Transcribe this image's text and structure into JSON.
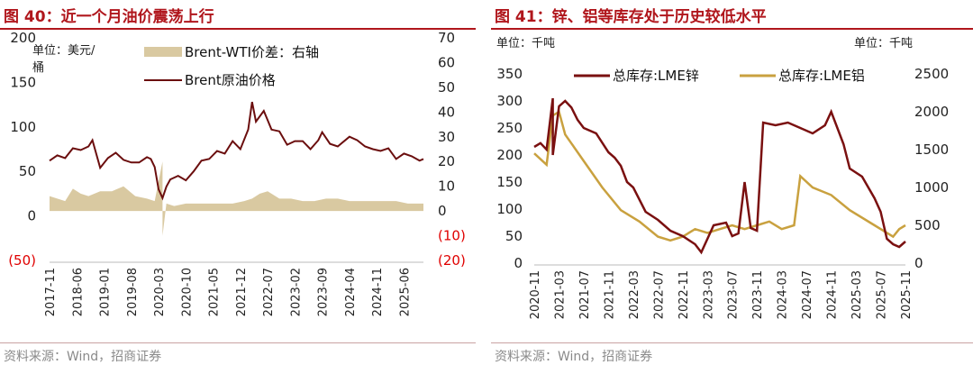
{
  "source_note": "资料来源：Wind，招商证券",
  "colors": {
    "title": "#b0161c",
    "brent": "#6b0e0e",
    "spread": "#d9c9a1",
    "zinc": "#7a1010",
    "aluminum": "#c9a13f",
    "negative_tick": "#e00000"
  },
  "chart_data": [
    {
      "type": "line",
      "title": "图 40：近一个月油价震荡上行",
      "unit_left_line1": "单位：美元/",
      "unit_left_line2": "桶",
      "y_left_ticks": [
        "200",
        "150",
        "100",
        "50",
        "0",
        "(50)"
      ],
      "ylim_left": [
        -50,
        200
      ],
      "y_right_ticks": [
        "70",
        "60",
        "50",
        "40",
        "30",
        "20",
        "10",
        "0",
        "(10)",
        "(20)"
      ],
      "ylim_right": [
        -20,
        70
      ],
      "x_ticks": [
        "2017-11",
        "2018-06",
        "2019-01",
        "2019-08",
        "2020-03",
        "2020-10",
        "2021-05",
        "2021-12",
        "2022-07",
        "2023-02",
        "2023-09",
        "2024-04",
        "2024-11",
        "2025-06"
      ],
      "x_range": [
        "2017-11",
        "2025-11"
      ],
      "grid": false,
      "legend_position": "top",
      "series": [
        {
          "name": "Brent原油价格",
          "axis": "left",
          "style": "line",
          "x": [
            "2017-11",
            "2018-01",
            "2018-03",
            "2018-05",
            "2018-07",
            "2018-09",
            "2018-10",
            "2018-12",
            "2019-02",
            "2019-04",
            "2019-06",
            "2019-08",
            "2019-10",
            "2019-12",
            "2020-01",
            "2020-02",
            "2020-03",
            "2020-04",
            "2020-05",
            "2020-06",
            "2020-08",
            "2020-10",
            "2020-12",
            "2021-02",
            "2021-04",
            "2021-06",
            "2021-08",
            "2021-10",
            "2021-12",
            "2022-02",
            "2022-03",
            "2022-04",
            "2022-06",
            "2022-08",
            "2022-10",
            "2022-12",
            "2023-02",
            "2023-04",
            "2023-06",
            "2023-08",
            "2023-09",
            "2023-11",
            "2024-01",
            "2024-04",
            "2024-06",
            "2024-08",
            "2024-10",
            "2024-12",
            "2025-02",
            "2025-04",
            "2025-06",
            "2025-08",
            "2025-10",
            "2025-11"
          ],
          "values": [
            62,
            68,
            65,
            76,
            74,
            78,
            85,
            54,
            65,
            71,
            63,
            60,
            60,
            66,
            64,
            55,
            30,
            20,
            33,
            41,
            45,
            40,
            50,
            62,
            64,
            73,
            70,
            84,
            75,
            97,
            128,
            106,
            118,
            97,
            95,
            80,
            84,
            84,
            75,
            85,
            94,
            81,
            78,
            89,
            85,
            78,
            75,
            73,
            76,
            64,
            70,
            67,
            62,
            64
          ]
        },
        {
          "name": "Brent-WTI价差：右轴",
          "axis": "right",
          "style": "area",
          "x": [
            "2017-11",
            "2018-01",
            "2018-03",
            "2018-05",
            "2018-07",
            "2018-09",
            "2018-12",
            "2019-03",
            "2019-06",
            "2019-09",
            "2019-12",
            "2020-02",
            "2020-04",
            "2020-04",
            "2020-05",
            "2020-07",
            "2020-10",
            "2021-01",
            "2021-04",
            "2021-07",
            "2021-10",
            "2022-01",
            "2022-03",
            "2022-05",
            "2022-07",
            "2022-10",
            "2023-01",
            "2023-04",
            "2023-07",
            "2023-10",
            "2024-01",
            "2024-04",
            "2024-07",
            "2024-10",
            "2025-01",
            "2025-04",
            "2025-07",
            "2025-11"
          ],
          "values": [
            6,
            5,
            4,
            9,
            7,
            6,
            8,
            8,
            10,
            6,
            5,
            4,
            20,
            -10,
            3,
            2,
            3,
            3,
            3,
            3,
            3,
            4,
            5,
            7,
            8,
            5,
            5,
            4,
            4,
            5,
            5,
            4,
            4,
            4,
            4,
            4,
            3,
            3
          ]
        }
      ]
    },
    {
      "type": "line",
      "title": "图 41：锌、铝等库存处于历史较低水平",
      "unit_left": "单位：千吨",
      "unit_right": "单位：千吨",
      "y_left_ticks": [
        "350",
        "300",
        "250",
        "200",
        "150",
        "100",
        "50",
        "0"
      ],
      "ylim_left": [
        0,
        350
      ],
      "y_right_ticks": [
        "2500",
        "2000",
        "1500",
        "1000",
        "500",
        "0"
      ],
      "ylim_right": [
        0,
        2500
      ],
      "x_ticks": [
        "2020-11",
        "2021-03",
        "2021-07",
        "2021-11",
        "2022-03",
        "2022-07",
        "2022-11",
        "2023-03",
        "2023-07",
        "2023-11",
        "2024-03",
        "2024-07",
        "2024-11",
        "2025-03",
        "2025-07",
        "2025-11"
      ],
      "x_range": [
        "2020-11",
        "2025-11"
      ],
      "grid": false,
      "legend_position": "top",
      "series": [
        {
          "name": "总库存:LME锌",
          "axis": "left",
          "x": [
            "2020-11",
            "2020-12",
            "2021-01",
            "2021-02",
            "2021-02",
            "2021-03",
            "2021-04",
            "2021-05",
            "2021-06",
            "2021-07",
            "2021-09",
            "2021-11",
            "2021-12",
            "2022-01",
            "2022-02",
            "2022-03",
            "2022-05",
            "2022-07",
            "2022-09",
            "2022-11",
            "2023-01",
            "2023-02",
            "2023-04",
            "2023-06",
            "2023-07",
            "2023-08",
            "2023-09",
            "2023-10",
            "2023-11",
            "2023-12",
            "2024-02",
            "2024-04",
            "2024-06",
            "2024-08",
            "2024-10",
            "2024-11",
            "2025-01",
            "2025-02",
            "2025-04",
            "2025-06",
            "2025-07",
            "2025-08",
            "2025-09",
            "2025-10",
            "2025-11"
          ],
          "values": [
            215,
            222,
            210,
            305,
            200,
            290,
            300,
            288,
            265,
            250,
            240,
            205,
            195,
            180,
            150,
            140,
            95,
            80,
            60,
            50,
            35,
            20,
            70,
            75,
            50,
            55,
            150,
            65,
            60,
            260,
            255,
            260,
            250,
            240,
            255,
            280,
            220,
            175,
            160,
            120,
            95,
            45,
            35,
            30,
            40
          ]
        },
        {
          "name": "总库存:LME铝",
          "axis": "right",
          "x": [
            "2020-11",
            "2021-01",
            "2021-02",
            "2021-03",
            "2021-04",
            "2021-07",
            "2021-10",
            "2022-01",
            "2022-04",
            "2022-07",
            "2022-09",
            "2022-11",
            "2023-01",
            "2023-03",
            "2023-05",
            "2023-07",
            "2023-09",
            "2023-11",
            "2024-01",
            "2024-03",
            "2024-05",
            "2024-06",
            "2024-08",
            "2024-11",
            "2025-02",
            "2025-06",
            "2025-09",
            "2025-10",
            "2025-11"
          ],
          "values": [
            1450,
            1300,
            1950,
            2000,
            1700,
            1350,
            1000,
            700,
            550,
            350,
            300,
            350,
            450,
            400,
            450,
            500,
            450,
            500,
            550,
            450,
            500,
            1150,
            1000,
            900,
            700,
            500,
            350,
            450,
            500
          ]
        }
      ]
    }
  ]
}
